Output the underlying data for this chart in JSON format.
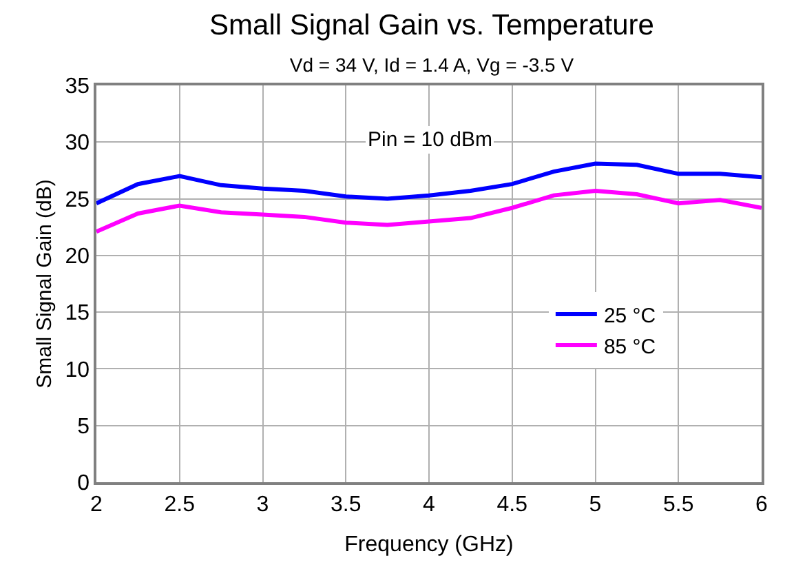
{
  "chart_data": {
    "type": "line",
    "title": "Small Signal Gain vs. Temperature",
    "subtitle": "Vd = 34 V, Id = 1.4 A, Vg = -3.5 V",
    "xlabel": "Frequency (GHz)",
    "ylabel": "Small Signal Gain (dB)",
    "x": [
      2,
      2.25,
      2.5,
      2.75,
      3,
      3.25,
      3.5,
      3.75,
      4,
      4.25,
      4.5,
      4.75,
      5,
      5.25,
      5.5,
      5.75,
      6
    ],
    "series": [
      {
        "name": "25 °C",
        "color": "#0000ff",
        "values": [
          24.6,
          26.3,
          27.0,
          26.2,
          25.9,
          25.7,
          25.2,
          25.0,
          25.3,
          25.7,
          26.3,
          27.4,
          28.1,
          28.0,
          27.2,
          27.2,
          26.9
        ]
      },
      {
        "name": "85 °C",
        "color": "#ff00ff",
        "values": [
          22.1,
          23.7,
          24.4,
          23.8,
          23.6,
          23.4,
          22.9,
          22.7,
          23.0,
          23.3,
          24.2,
          25.3,
          25.7,
          25.4,
          24.6,
          24.9,
          24.2
        ]
      }
    ],
    "annotations": [
      "Pin = 10 dBm"
    ],
    "xlim": [
      2,
      6
    ],
    "xticks": [
      2,
      2.5,
      3,
      3.5,
      4,
      4.5,
      5,
      5.5,
      6
    ],
    "ylim": [
      0,
      35
    ],
    "yticks": [
      0,
      5,
      10,
      15,
      20,
      25,
      30,
      35
    ],
    "grid": true,
    "legend": "right",
    "marker": "none",
    "line_style": "solid"
  }
}
